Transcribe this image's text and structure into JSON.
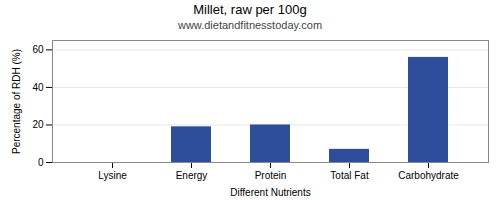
{
  "chart_data": {
    "type": "bar",
    "title": "Millet, raw per 100g",
    "subtitle": "www.dietandfitnesstoday.com",
    "xlabel": "Different Nutrients",
    "ylabel": "Percentage of RDH (%)",
    "categories": [
      "Lysine",
      "Energy",
      "Protein",
      "Total Fat",
      "Carbohydrate"
    ],
    "values": [
      0,
      19,
      20,
      7,
      56
    ],
    "color": "#2e4d9b",
    "ylim": [
      0,
      65
    ],
    "yticks": [
      0,
      20,
      40,
      60
    ],
    "grid": true
  }
}
